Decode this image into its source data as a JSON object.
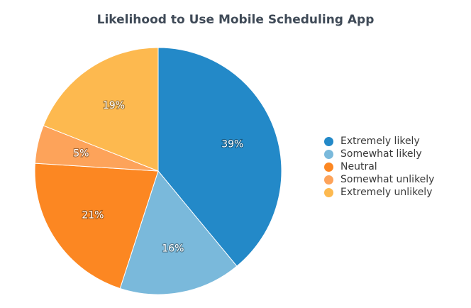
{
  "chart_data": {
    "type": "pie",
    "title": "Likelihood to Use Mobile Scheduling App",
    "categories": [
      "Extremely likely",
      "Somewhat likely",
      "Neutral",
      "Somewhat unlikely",
      "Extremely unlikely"
    ],
    "values": [
      39,
      16,
      21,
      5,
      19
    ],
    "labels": [
      "39%",
      "16%",
      "21%",
      "5%",
      "19%"
    ],
    "colors": [
      "#2389c8",
      "#7ab9db",
      "#fc8722",
      "#fda35a",
      "#fdb94f"
    ],
    "start_angle": "12 o'clock",
    "direction": "clockwise",
    "legend_position": "right"
  }
}
